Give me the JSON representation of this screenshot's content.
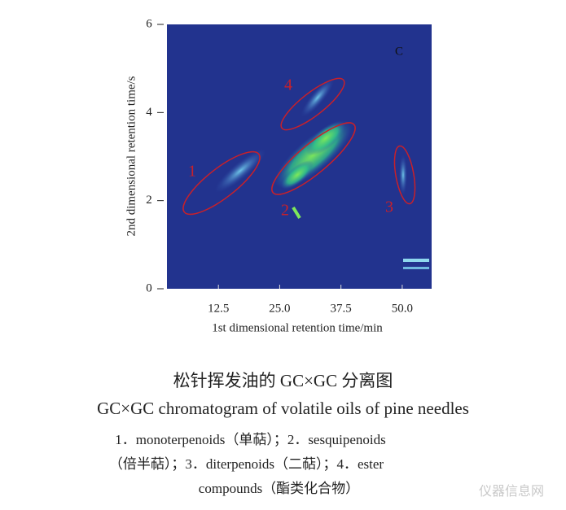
{
  "chart_data": {
    "type": "heatmap",
    "xlabel": "1st dimensional retention time/min",
    "ylabel": "2nd dimensional retention time/s",
    "xlim": [
      2,
      56
    ],
    "xticks": [
      12.5,
      {
        "value": 25,
        "label": "25.0"
      },
      37.5,
      {
        "value": 50,
        "label": "50.0"
      }
    ],
    "ylim": [
      0,
      6
    ],
    "yticks": [
      0,
      2,
      4,
      6
    ],
    "panel_label": "C",
    "annotations": [
      "1",
      "2",
      "3",
      "4"
    ]
  },
  "caption": {
    "title_cn": "松针挥发油的 GC×GC 分离图",
    "title_en": "GC×GC chromatogram of volatile oils of pine needles",
    "lines": [
      "1．monoterpenoids（单萜）；2．sesquipenoids",
      "（倍半萜）；3．diterpenoids（二萜）；4．ester",
      "compounds（酯类化合物）"
    ]
  },
  "watermark": "仪器信息网"
}
